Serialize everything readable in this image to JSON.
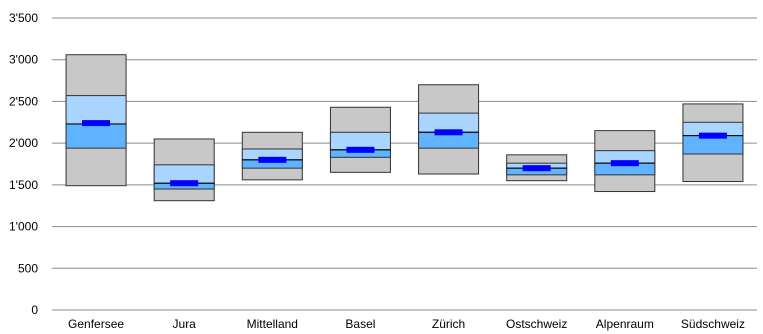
{
  "chart_data": {
    "type": "boxplot",
    "categories": [
      "Genfersee",
      "Jura",
      "Mittelland",
      "Basel",
      "Zürich",
      "Ostschweiz",
      "Alpenraum",
      "Südschweiz"
    ],
    "series": [
      {
        "name": "",
        "values": [
          {
            "min": 1490,
            "q1": 1940,
            "median": 2230,
            "q3": 2570,
            "max": 3060,
            "marker": 2240
          },
          {
            "min": 1310,
            "q1": 1450,
            "median": 1520,
            "q3": 1740,
            "max": 2050,
            "marker": 1520
          },
          {
            "min": 1560,
            "q1": 1700,
            "median": 1800,
            "q3": 1930,
            "max": 2130,
            "marker": 1800
          },
          {
            "min": 1650,
            "q1": 1830,
            "median": 1920,
            "q3": 2130,
            "max": 2430,
            "marker": 1920
          },
          {
            "min": 1630,
            "q1": 1940,
            "median": 2130,
            "q3": 2360,
            "max": 2700,
            "marker": 2130
          },
          {
            "min": 1550,
            "q1": 1620,
            "median": 1700,
            "q3": 1760,
            "max": 1860,
            "marker": 1700
          },
          {
            "min": 1420,
            "q1": 1620,
            "median": 1760,
            "q3": 1910,
            "max": 2150,
            "marker": 1760
          },
          {
            "min": 1540,
            "q1": 1870,
            "median": 2090,
            "q3": 2250,
            "max": 2470,
            "marker": 2090
          }
        ]
      }
    ],
    "yticks": [
      "0",
      "500",
      "1'000",
      "1'500",
      "2'000",
      "2'500",
      "3'000",
      "3'500"
    ],
    "ylim": [
      0,
      3500
    ],
    "grid": true,
    "colors": {
      "outer_box": "#c8c8c8",
      "q3_box": "#a9d5ff",
      "q1_box": "#5fb3ff",
      "marker": "#0000ff",
      "grid": "#8c8c8c"
    }
  }
}
